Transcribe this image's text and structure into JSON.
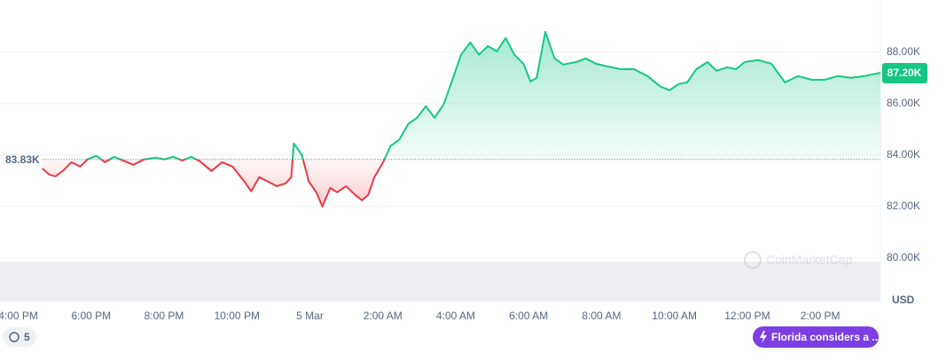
{
  "chart_data": {
    "type": "line",
    "x": [
      0.66,
      0.85,
      1.02,
      1.22,
      1.46,
      1.7,
      1.9,
      2.14,
      2.38,
      2.63,
      2.87,
      3.16,
      3.45,
      3.77,
      4.01,
      4.25,
      4.5,
      4.74,
      4.98,
      5.3,
      5.59,
      5.88,
      6.2,
      6.39,
      6.61,
      6.85,
      7.09,
      7.34,
      7.49,
      7.56,
      7.78,
      7.97,
      8.19,
      8.34,
      8.56,
      8.75,
      8.99,
      9.24,
      9.43,
      9.6,
      9.77,
      10.01,
      10.21,
      10.45,
      10.7,
      10.94,
      11.18,
      11.42,
      11.67,
      11.91,
      12.15,
      12.4,
      12.64,
      12.88,
      13.13,
      13.37,
      13.61,
      13.86,
      14.05,
      14.22,
      14.46,
      14.71,
      14.95,
      15.31,
      15.56,
      15.85,
      16.16,
      16.53,
      16.89,
      17.26,
      17.62,
      17.87,
      18.11,
      18.35,
      18.6,
      18.91,
      19.15,
      19.45,
      19.69,
      19.93,
      20.3,
      20.66,
      21.03,
      21.39,
      21.76,
      22.12,
      22.48,
      22.85,
      23.21,
      23.65
    ],
    "values": [
      83480,
      83240,
      83170,
      83380,
      83720,
      83550,
      83830,
      83970,
      83720,
      83930,
      83790,
      83620,
      83830,
      83900,
      83830,
      83930,
      83790,
      83930,
      83760,
      83380,
      83720,
      83550,
      82970,
      82590,
      83140,
      82970,
      82790,
      82900,
      83140,
      84450,
      84000,
      82970,
      82520,
      82000,
      82720,
      82550,
      82790,
      82450,
      82240,
      82450,
      83140,
      83720,
      84350,
      84590,
      85210,
      85450,
      85900,
      85450,
      85970,
      86930,
      87900,
      88380,
      87900,
      88240,
      88030,
      88550,
      87900,
      87550,
      86860,
      87000,
      88790,
      87760,
      87520,
      87620,
      87760,
      87550,
      87450,
      87340,
      87340,
      87070,
      86660,
      86520,
      86760,
      86830,
      87340,
      87620,
      87280,
      87410,
      87340,
      87620,
      87690,
      87550,
      86830,
      87070,
      86930,
      86930,
      87070,
      87000,
      87070,
      87200
    ],
    "colors": {
      "above": "#16c784",
      "below": "#ea3943"
    },
    "baseline": {
      "value": 83830,
      "label": "83.83K"
    },
    "last_price": {
      "value": 87200,
      "label": "87.20K"
    },
    "xlim": [
      -0.5,
      23.65
    ],
    "xticks": [
      {
        "value": 0,
        "label": "4:00 PM"
      },
      {
        "value": 2,
        "label": "6:00 PM"
      },
      {
        "value": 4,
        "label": "8:00 PM"
      },
      {
        "value": 6,
        "label": "10:00 PM"
      },
      {
        "value": 8,
        "label": "5 Mar"
      },
      {
        "value": 10,
        "label": "2:00 AM"
      },
      {
        "value": 12,
        "label": "4:00 AM"
      },
      {
        "value": 14,
        "label": "6:00 AM"
      },
      {
        "value": 16,
        "label": "8:00 AM"
      },
      {
        "value": 18,
        "label": "10:00 AM"
      },
      {
        "value": 20,
        "label": "12:00 PM"
      },
      {
        "value": 22,
        "label": "2:00 PM"
      }
    ],
    "ylim": [
      78300,
      90030
    ],
    "yticks": [
      {
        "value": 80000,
        "label": "80.00K"
      },
      {
        "value": 82000,
        "label": "82.00K"
      },
      {
        "value": 84000,
        "label": "84.00K"
      },
      {
        "value": 86000,
        "label": "86.00K"
      },
      {
        "value": 88000,
        "label": "88.00K"
      }
    ],
    "y_unit": "USD",
    "grid": true,
    "watermark": "CoinMarketCap"
  },
  "ui": {
    "history_count": "5",
    "news": "Florida considers a ..."
  }
}
